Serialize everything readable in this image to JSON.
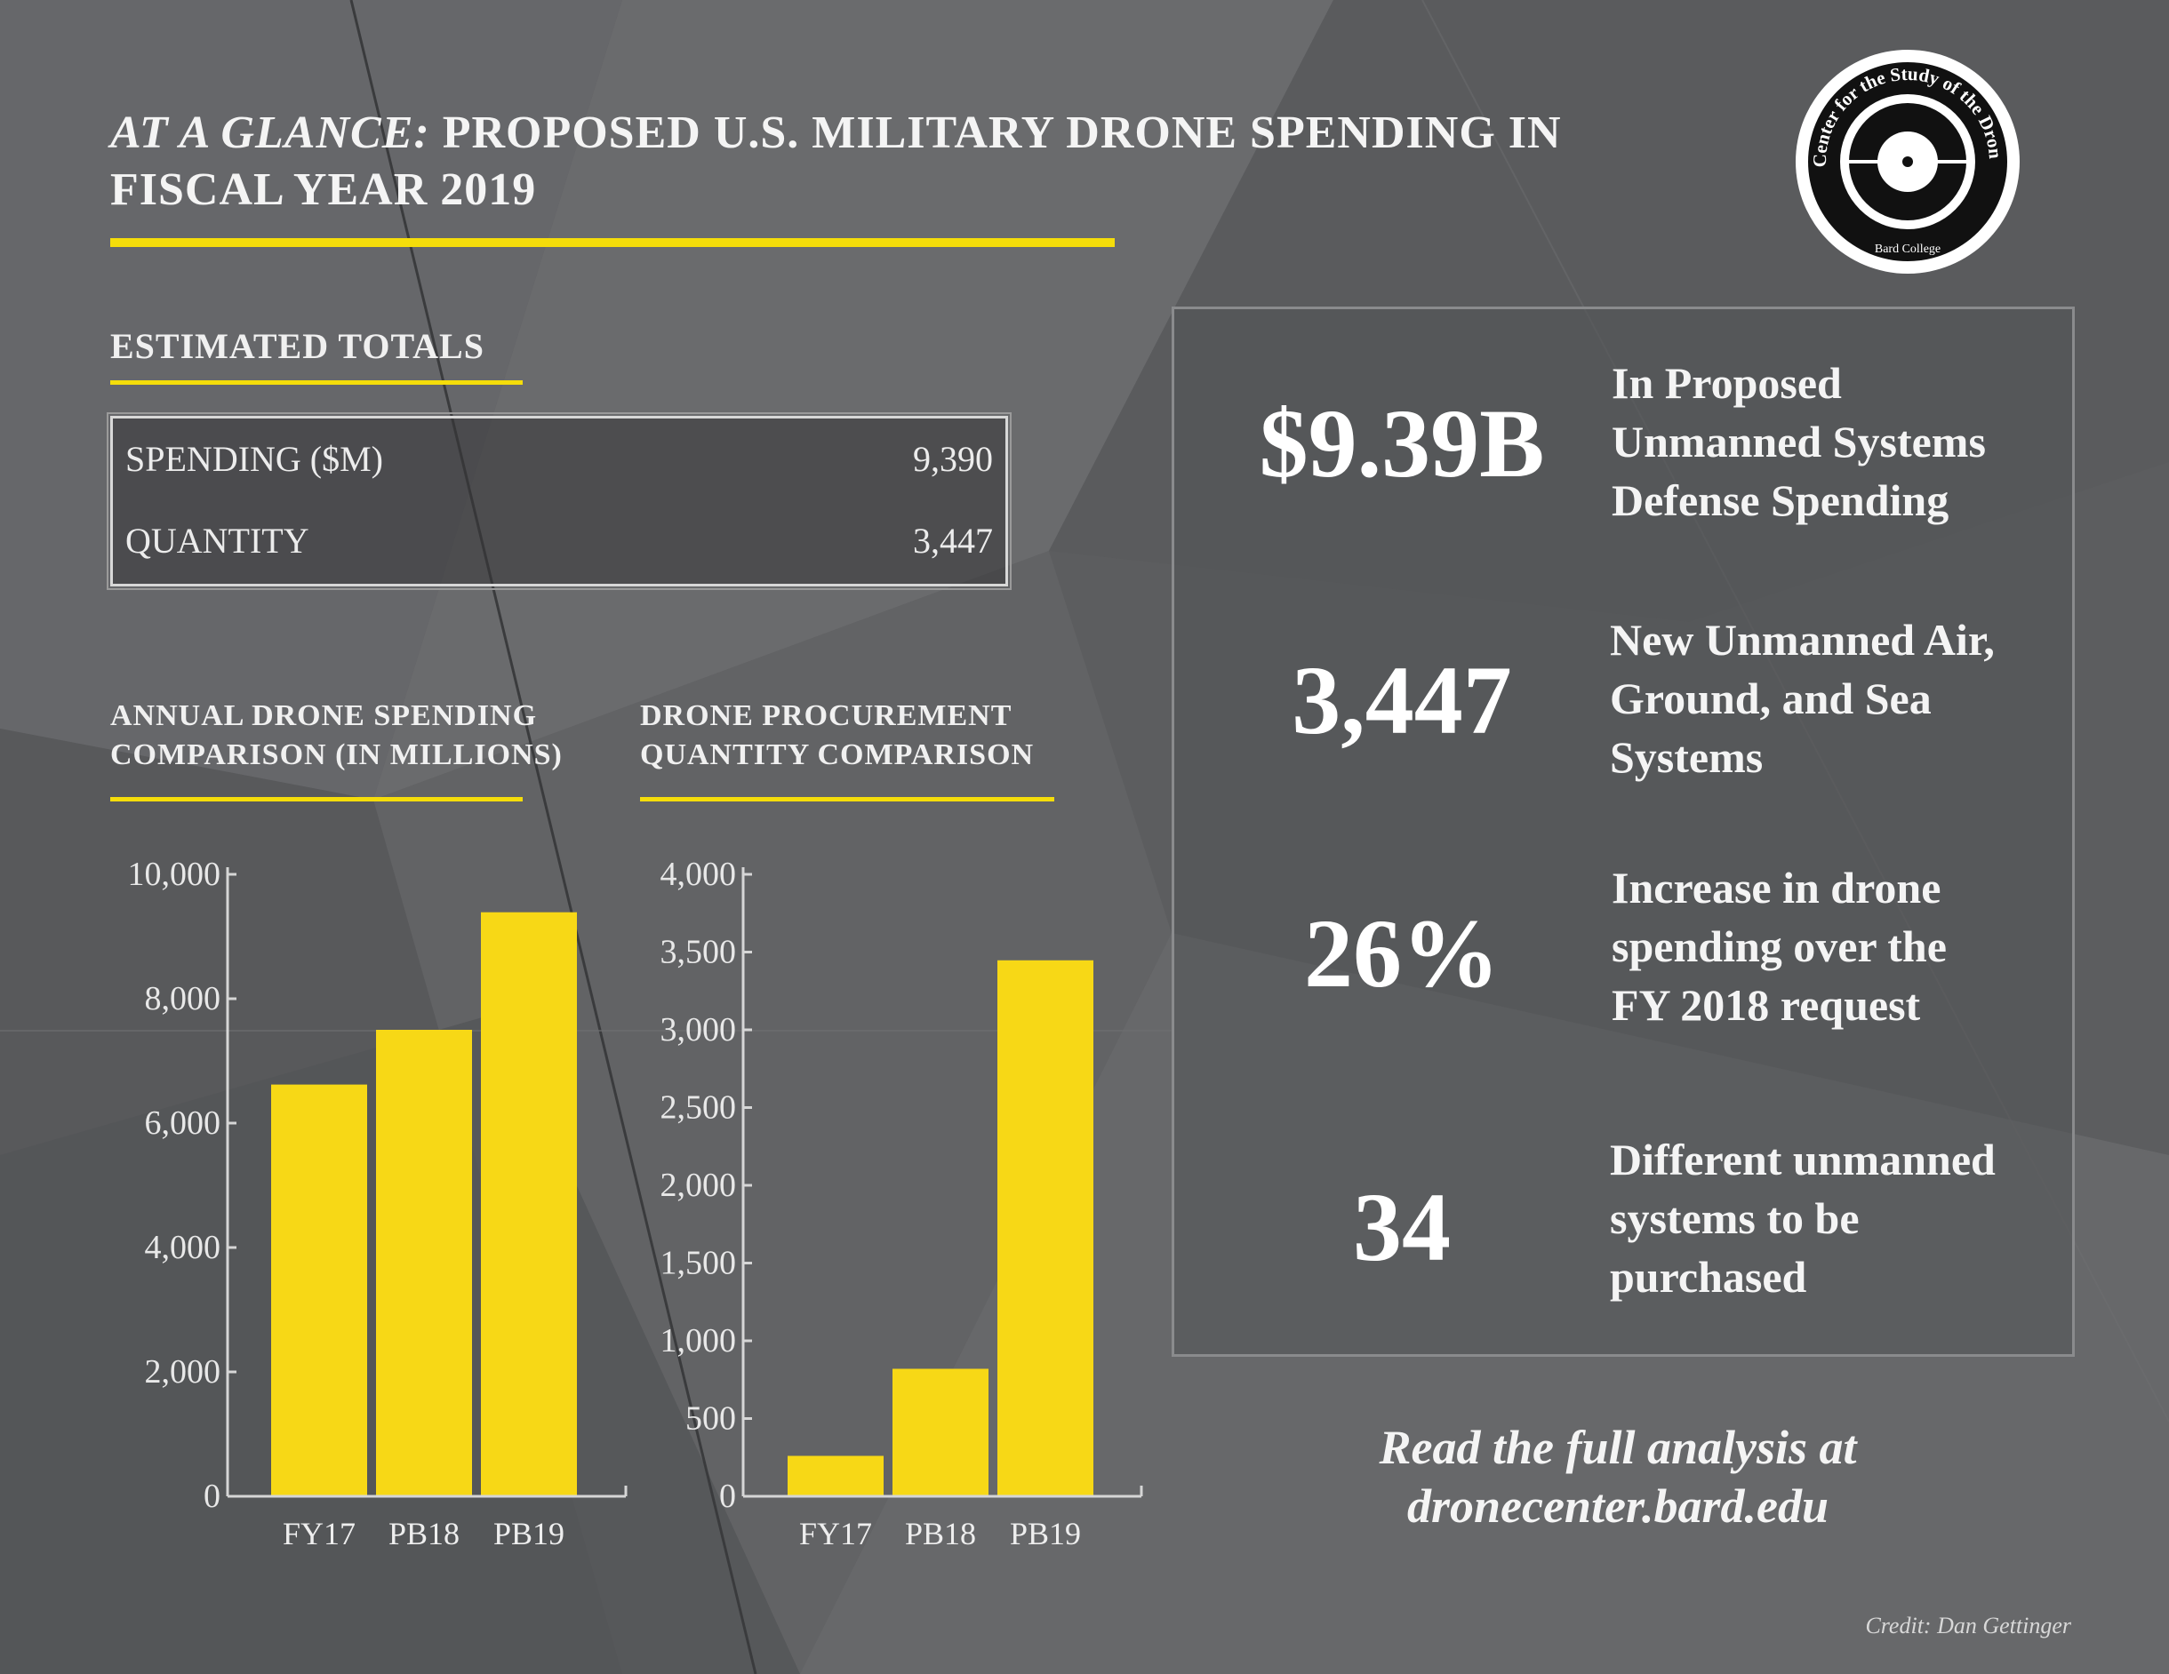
{
  "title": {
    "italic": "AT A GLANCE:",
    "line1_rest": " PROPOSED U.S. MILITARY DRONE SPENDING IN",
    "line2": "FISCAL YEAR 2019"
  },
  "logo": {
    "ring_text": "Center for the Study of the Drone",
    "bottom_text": "Bard College"
  },
  "estimated_totals": {
    "heading": "ESTIMATED TOTALS",
    "rows": [
      {
        "label": "SPENDING ($M)",
        "value": "9,390"
      },
      {
        "label": "QUANTITY",
        "value": "3,447"
      }
    ]
  },
  "chart_headings": {
    "spending": [
      "ANNUAL DRONE SPENDING",
      "COMPARISON (IN MILLIONS)"
    ],
    "quantity": [
      "DRONE PROCUREMENT",
      "QUANTITY COMPARISON"
    ]
  },
  "stats": [
    {
      "value": "$9.39B",
      "lines": [
        "In Proposed",
        "Unmanned Systems",
        "Defense Spending"
      ]
    },
    {
      "value": "3,447",
      "lines": [
        "New Unmanned Air,",
        "Ground, and Sea",
        "Systems"
      ]
    },
    {
      "value": "26%",
      "lines": [
        "Increase in drone",
        "spending over the",
        "FY 2018 request"
      ]
    },
    {
      "value": "34",
      "lines": [
        "Different unmanned",
        "systems to be",
        "purchased"
      ]
    }
  ],
  "read_more": [
    "Read the full analysis at",
    "dronecenter.bard.edu"
  ],
  "credit": "Credit: Dan Gettinger",
  "colors": {
    "background": "#5e5f61",
    "bar": "#f7d816",
    "rule": "#f5dd0a",
    "axis": "#d6d6d6"
  },
  "chart_data": [
    {
      "type": "bar",
      "title": "ANNUAL DRONE SPENDING COMPARISON (IN MILLIONS)",
      "categories": [
        "FY17",
        "PB18",
        "PB19"
      ],
      "values": [
        6620,
        7500,
        9390
      ],
      "ylim": [
        0,
        10000
      ],
      "yticks": [
        0,
        2000,
        4000,
        6000,
        8000,
        10000
      ],
      "ytick_labels": [
        "0",
        "2,000",
        "4,000",
        "6,000",
        "8,000",
        "10,000"
      ],
      "xlabel": "",
      "ylabel": "",
      "grid": false
    },
    {
      "type": "bar",
      "title": "DRONE PROCUREMENT QUANTITY COMPARISON",
      "categories": [
        "FY17",
        "PB18",
        "PB19"
      ],
      "values": [
        260,
        820,
        3447
      ],
      "ylim": [
        0,
        4000
      ],
      "yticks": [
        0,
        500,
        1000,
        1500,
        2000,
        2500,
        3000,
        3500,
        4000
      ],
      "ytick_labels": [
        "0",
        "500",
        "1,000",
        "1,500",
        "2,000",
        "2,500",
        "3,000",
        "3,500",
        "4,000"
      ],
      "xlabel": "",
      "ylabel": "",
      "grid": false
    }
  ]
}
